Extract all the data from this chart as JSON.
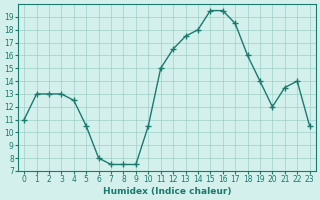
{
  "x": [
    0,
    1,
    2,
    3,
    4,
    5,
    6,
    7,
    8,
    9,
    10,
    11,
    12,
    13,
    14,
    15,
    16,
    17,
    18,
    19,
    20,
    21,
    22,
    23
  ],
  "y": [
    11,
    13,
    13,
    13,
    12.5,
    10.5,
    8,
    7.5,
    7.5,
    7.5,
    10.5,
    15,
    16.5,
    17.5,
    18,
    19.5,
    19.5,
    18.5,
    16,
    14,
    12,
    13.5,
    14,
    10.5
  ],
  "line_color": "#1a7a6e",
  "marker": "+",
  "marker_size": 5,
  "bg_color": "#d4f0ec",
  "grid_color": "#a0cfc9",
  "xlabel": "Humidex (Indice chaleur)",
  "xlim": [
    -0.5,
    23.5
  ],
  "ylim": [
    7,
    20
  ],
  "yticks": [
    7,
    8,
    9,
    10,
    11,
    12,
    13,
    14,
    15,
    16,
    17,
    18,
    19
  ],
  "xticks": [
    0,
    1,
    2,
    3,
    4,
    5,
    6,
    7,
    8,
    9,
    10,
    11,
    12,
    13,
    14,
    15,
    16,
    17,
    18,
    19,
    20,
    21,
    22,
    23
  ]
}
